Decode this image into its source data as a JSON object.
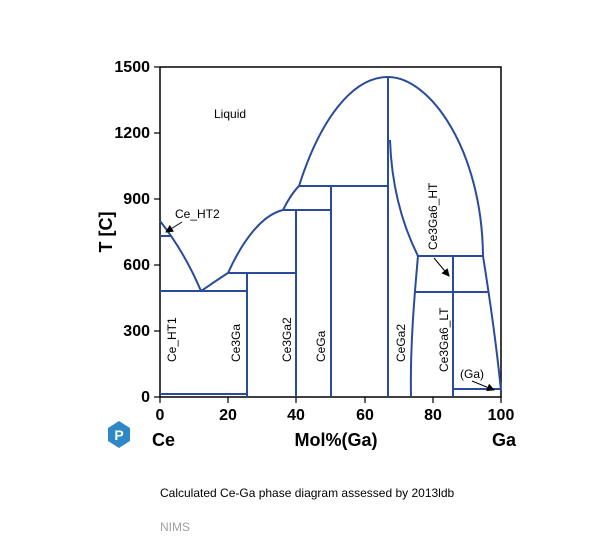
{
  "chart_data": {
    "type": "phase-diagram",
    "xlabel": "Mol%(Ga)",
    "ylabel": "T [C]",
    "xlim": [
      0,
      100
    ],
    "ylim": [
      0,
      1500
    ],
    "x_ticks": [
      "0",
      "20",
      "40",
      "60",
      "80",
      "100"
    ],
    "y_ticks": [
      "0",
      "300",
      "600",
      "900",
      "1200",
      "1500"
    ],
    "left_element": "Ce",
    "right_element": "Ga",
    "phase_labels": {
      "liquid": "Liquid",
      "ce_ht2": "Ce_HT2",
      "ce_ht1": "Ce_HT1",
      "ce3ga": "Ce3Ga",
      "ce3ga2": "Ce3Ga2",
      "cega": "CeGa",
      "cega2": "CeGa2",
      "ce3ga6_ht": "Ce3Ga6_HT",
      "ce3ga6_lt": "Ce3Ga6_LT",
      "ga": "(Ga)"
    }
  },
  "caption": "Calculated Ce-Ga phase diagram assessed by 2013ldb",
  "credit": "NIMS",
  "logo_letter": "P"
}
